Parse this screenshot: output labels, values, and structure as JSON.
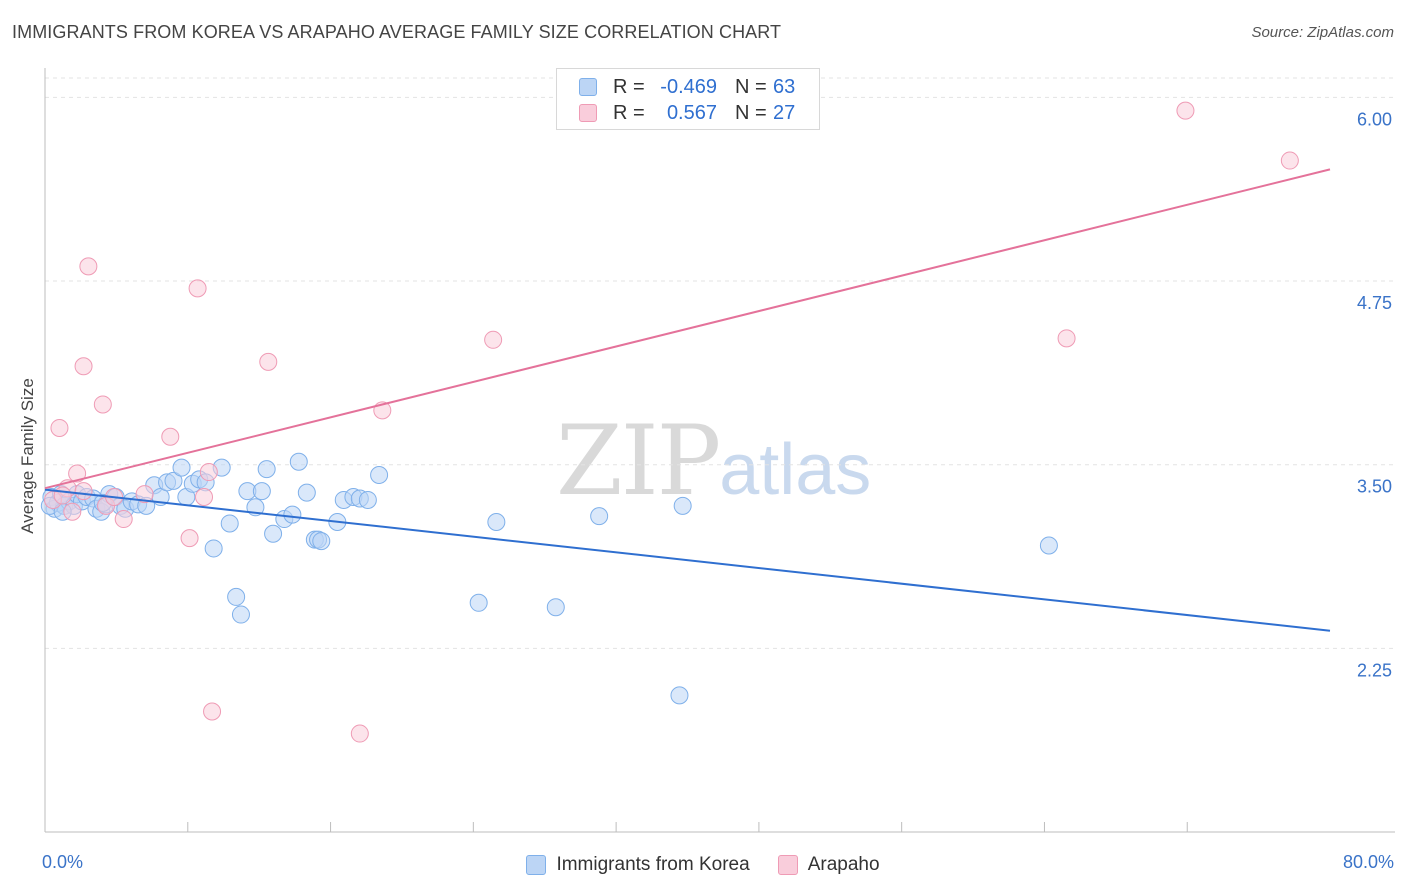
{
  "title": "IMMIGRANTS FROM KOREA VS ARAPAHO AVERAGE FAMILY SIZE CORRELATION CHART",
  "source": "Source: ZipAtlas.com",
  "watermark": {
    "zip": "ZIP",
    "atlas": "atlas"
  },
  "stats": [
    {
      "r_label": "R =",
      "r_value": "-0.469",
      "n_label": "N =",
      "n_value": "63",
      "color": "#7fb0ea",
      "fill": "#bcd5f5"
    },
    {
      "r_label": "R =",
      "r_value": "0.567",
      "n_label": "N =",
      "n_value": "27",
      "color": "#ef9bb5",
      "fill": "#f9cddb"
    }
  ],
  "chart_data": {
    "type": "scatter",
    "xlabel": "",
    "ylabel": "Average Family Size",
    "xlim": [
      0,
      80
    ],
    "ylim": [
      1.0,
      6.2
    ],
    "x_tick_labels": [
      "0.0%",
      "80.0%"
    ],
    "y_ticks": [
      2.25,
      3.5,
      4.75,
      6.0
    ],
    "y_tick_labels": [
      "2.25",
      "3.50",
      "4.75",
      "6.00"
    ],
    "grid": "horizontal dashed",
    "legend_position": "bottom-center",
    "series": [
      {
        "name": "Immigrants from Korea",
        "color": "#7fb0ea",
        "fill": "#bcd5f5",
        "line_color": "#2f6fd0",
        "trend": [
          [
            0,
            3.33
          ],
          [
            80,
            2.37
          ]
        ],
        "points": [
          [
            0.4,
            3.28
          ],
          [
            0.6,
            3.2
          ],
          [
            0.8,
            3.24
          ],
          [
            1.0,
            3.3
          ],
          [
            1.2,
            3.22
          ],
          [
            1.5,
            3.25
          ],
          [
            1.8,
            3.22
          ],
          [
            2.0,
            3.3
          ],
          [
            2.3,
            3.25
          ],
          [
            2.6,
            3.28
          ],
          [
            3.0,
            3.27
          ],
          [
            3.2,
            3.2
          ],
          [
            3.5,
            3.18
          ],
          [
            3.8,
            3.23
          ],
          [
            4.0,
            3.3
          ],
          [
            4.4,
            3.28
          ],
          [
            4.7,
            3.22
          ],
          [
            5.0,
            3.2
          ],
          [
            5.4,
            3.25
          ],
          [
            5.8,
            3.23
          ],
          [
            6.3,
            3.22
          ],
          [
            6.8,
            3.36
          ],
          [
            7.2,
            3.28
          ],
          [
            7.6,
            3.38
          ],
          [
            8.0,
            3.39
          ],
          [
            8.5,
            3.48
          ],
          [
            8.8,
            3.28
          ],
          [
            9.2,
            3.37
          ],
          [
            9.6,
            3.4
          ],
          [
            10.0,
            3.38
          ],
          [
            10.5,
            2.93
          ],
          [
            11.0,
            3.48
          ],
          [
            11.5,
            3.1
          ],
          [
            11.9,
            2.6
          ],
          [
            12.2,
            2.48
          ],
          [
            12.6,
            3.32
          ],
          [
            13.1,
            3.21
          ],
          [
            13.5,
            3.32
          ],
          [
            13.8,
            3.47
          ],
          [
            14.2,
            3.03
          ],
          [
            14.9,
            3.13
          ],
          [
            15.4,
            3.16
          ],
          [
            15.8,
            3.52
          ],
          [
            16.3,
            3.31
          ],
          [
            16.8,
            2.99
          ],
          [
            17.0,
            2.99
          ],
          [
            17.2,
            2.98
          ],
          [
            18.2,
            3.11
          ],
          [
            18.6,
            3.26
          ],
          [
            19.2,
            3.28
          ],
          [
            19.6,
            3.27
          ],
          [
            20.1,
            3.26
          ],
          [
            20.8,
            3.43
          ],
          [
            27.0,
            2.56
          ],
          [
            28.1,
            3.11
          ],
          [
            31.8,
            2.53
          ],
          [
            34.5,
            3.15
          ],
          [
            39.5,
            1.93
          ],
          [
            39.7,
            3.22
          ],
          [
            62.5,
            2.95
          ],
          [
            0.3,
            3.22
          ],
          [
            1.1,
            3.18
          ],
          [
            3.6,
            3.24
          ]
        ]
      },
      {
        "name": "Arapaho",
        "color": "#ef9bb5",
        "fill": "#f9cddb",
        "line_color": "#e4729a",
        "trend": [
          [
            0,
            3.34
          ],
          [
            80,
            5.51
          ]
        ],
        "points": [
          [
            0.5,
            3.26
          ],
          [
            0.9,
            3.75
          ],
          [
            1.4,
            3.34
          ],
          [
            1.7,
            3.18
          ],
          [
            2.0,
            3.44
          ],
          [
            2.4,
            3.32
          ],
          [
            2.4,
            4.17
          ],
          [
            2.7,
            4.85
          ],
          [
            3.6,
            3.91
          ],
          [
            3.8,
            3.22
          ],
          [
            4.3,
            3.28
          ],
          [
            4.9,
            3.13
          ],
          [
            6.2,
            3.3
          ],
          [
            7.8,
            3.69
          ],
          [
            9.0,
            3.0
          ],
          [
            9.5,
            4.7
          ],
          [
            9.9,
            3.28
          ],
          [
            10.2,
            3.45
          ],
          [
            10.4,
            1.82
          ],
          [
            13.9,
            4.2
          ],
          [
            19.6,
            1.67
          ],
          [
            21.0,
            3.87
          ],
          [
            27.9,
            4.35
          ],
          [
            63.6,
            4.36
          ],
          [
            71.0,
            5.91
          ],
          [
            77.5,
            5.57
          ],
          [
            1.1,
            3.29
          ]
        ]
      }
    ]
  }
}
